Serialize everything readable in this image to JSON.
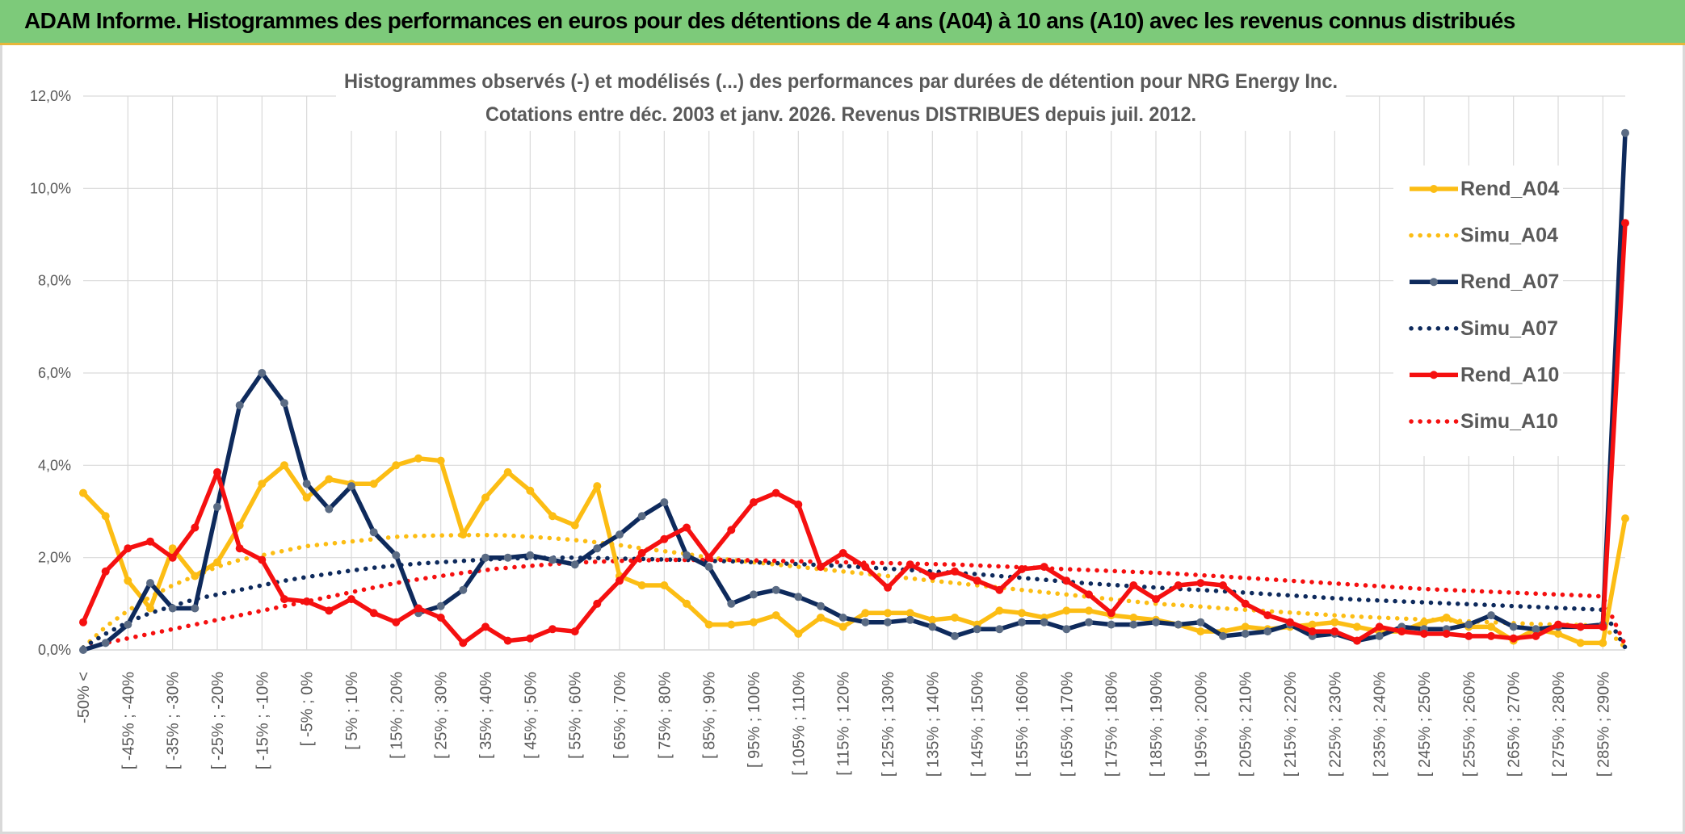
{
  "banner": {
    "title": "ADAM Informe. Histogrammes des performances en euros pour des détentions de 4 ans (A04) à 10 ans (A10) avec les revenus connus distribués"
  },
  "colors": {
    "banner_bg": "#7dca7a",
    "banner_accent": "#e7b63a",
    "a04": "#fcbd14",
    "a07": "#0e2a5c",
    "a07_marker": "#5a6b84",
    "a10": "#f51010",
    "grid": "#d9d9d9",
    "axis_text": "#595959"
  },
  "chart_data": {
    "type": "line",
    "title": "Histogrammes observés (-) et modélisés (...) des performances par durées de détention pour NRG Energy Inc.",
    "subtitle": "Cotations entre déc. 2003 et janv. 2026. Revenus DISTRIBUES depuis juil. 2012.",
    "xlabel": "",
    "ylabel": "",
    "ylim": [
      0,
      12
    ],
    "y_unit": "%",
    "y_ticks": [
      "0,0%",
      "2,0%",
      "4,0%",
      "6,0%",
      "8,0%",
      "10,0%",
      "12,0%"
    ],
    "grid": true,
    "legend_position": "right",
    "x_labels": [
      "-50% <",
      "[ -45% ; -40%",
      "[ -35% ; -30%",
      "[ -25% ; -20%",
      "[ -15% ; -10%",
      "[ -5% ; 0%",
      "[ 5% ; 10%",
      "[ 15% ; 20%",
      "[ 25% ; 30%",
      "[ 35% ; 40%",
      "[ 45% ; 50%",
      "[ 55% ; 60%",
      "[ 65% ; 70%",
      "[ 75% ; 80%",
      "[ 85% ; 90%",
      "[ 95% ; 100%",
      "[ 105% ; 110%",
      "[ 115% ; 120%",
      "[ 125% ; 130%",
      "[ 135% ; 140%",
      "[ 145% ; 150%",
      "[ 155% ; 160%",
      "[ 165% ; 170%",
      "[ 175% ; 180%",
      "[ 185% ; 190%",
      "[ 195% ; 200%",
      "[ 205% ; 210%",
      "[ 215% ; 220%",
      "[ 225% ; 230%",
      "[ 235% ; 240%",
      "[ 245% ; 250%",
      "[ 255% ; 260%",
      "[ 265% ; 270%",
      "[ 275% ; 280%",
      "[ 285% ; 290%"
    ],
    "n_points": 70,
    "series": [
      {
        "name": "Rend_A04",
        "style": "solid",
        "color": "#fcbd14",
        "values": [
          3.4,
          2.9,
          1.5,
          0.9,
          2.2,
          1.6,
          1.9,
          2.7,
          3.6,
          4.0,
          3.3,
          3.7,
          3.6,
          3.6,
          4.0,
          4.15,
          4.1,
          2.5,
          3.3,
          3.85,
          3.45,
          2.9,
          2.7,
          3.55,
          1.6,
          1.4,
          1.4,
          1.0,
          0.55,
          0.55,
          0.6,
          0.75,
          0.35,
          0.7,
          0.5,
          0.8,
          0.8,
          0.8,
          0.65,
          0.7,
          0.55,
          0.85,
          0.8,
          0.7,
          0.85,
          0.85,
          0.75,
          0.7,
          0.65,
          0.55,
          0.4,
          0.4,
          0.5,
          0.45,
          0.5,
          0.55,
          0.6,
          0.5,
          0.4,
          0.4,
          0.6,
          0.7,
          0.5,
          0.5,
          0.2,
          0.45,
          0.35,
          0.15,
          0.15,
          2.85
        ]
      },
      {
        "name": "Simu_A04",
        "style": "dotted",
        "color": "#fcbd14",
        "values": [
          0.05,
          0.5,
          0.85,
          1.15,
          1.4,
          1.6,
          1.8,
          1.95,
          2.05,
          2.15,
          2.25,
          2.3,
          2.35,
          2.4,
          2.45,
          2.47,
          2.48,
          2.49,
          2.49,
          2.48,
          2.45,
          2.42,
          2.38,
          2.33,
          2.27,
          2.2,
          2.14,
          2.08,
          2.0,
          1.95,
          1.9,
          1.85,
          1.8,
          1.75,
          1.7,
          1.65,
          1.6,
          1.55,
          1.5,
          1.45,
          1.4,
          1.35,
          1.3,
          1.25,
          1.2,
          1.15,
          1.1,
          1.05,
          1.0,
          0.97,
          0.94,
          0.9,
          0.87,
          0.84,
          0.81,
          0.78,
          0.75,
          0.72,
          0.7,
          0.68,
          0.66,
          0.64,
          0.62,
          0.6,
          0.58,
          0.56,
          0.55,
          0.54,
          0.52,
          0.05
        ]
      },
      {
        "name": "Rend_A07",
        "style": "solid",
        "color": "#0e2a5c",
        "values": [
          0.0,
          0.15,
          0.55,
          1.45,
          0.9,
          0.9,
          3.1,
          5.3,
          6.0,
          5.35,
          3.6,
          3.05,
          3.55,
          2.55,
          2.05,
          0.8,
          0.95,
          1.3,
          2.0,
          2.0,
          2.05,
          1.95,
          1.85,
          2.2,
          2.5,
          2.9,
          3.2,
          2.05,
          1.8,
          1.0,
          1.2,
          1.3,
          1.15,
          0.95,
          0.7,
          0.6,
          0.6,
          0.65,
          0.5,
          0.3,
          0.45,
          0.45,
          0.6,
          0.6,
          0.45,
          0.6,
          0.55,
          0.55,
          0.6,
          0.55,
          0.6,
          0.3,
          0.35,
          0.4,
          0.55,
          0.3,
          0.35,
          0.2,
          0.3,
          0.5,
          0.45,
          0.45,
          0.55,
          0.75,
          0.5,
          0.45,
          0.5,
          0.5,
          0.55,
          11.2
        ]
      },
      {
        "name": "Simu_A07",
        "style": "dotted",
        "color": "#0e2a5c",
        "values": [
          0.05,
          0.35,
          0.6,
          0.8,
          0.95,
          1.1,
          1.2,
          1.3,
          1.4,
          1.5,
          1.58,
          1.65,
          1.72,
          1.78,
          1.83,
          1.87,
          1.9,
          1.93,
          1.96,
          1.98,
          1.99,
          2.0,
          2.0,
          1.99,
          1.98,
          1.97,
          1.96,
          1.95,
          1.93,
          1.92,
          1.9,
          1.88,
          1.86,
          1.84,
          1.82,
          1.79,
          1.76,
          1.73,
          1.7,
          1.67,
          1.64,
          1.6,
          1.56,
          1.52,
          1.48,
          1.44,
          1.41,
          1.38,
          1.35,
          1.32,
          1.3,
          1.27,
          1.24,
          1.21,
          1.18,
          1.15,
          1.12,
          1.09,
          1.07,
          1.05,
          1.03,
          1.01,
          0.99,
          0.97,
          0.95,
          0.93,
          0.91,
          0.89,
          0.87,
          0.05
        ]
      },
      {
        "name": "Rend_A10",
        "style": "solid",
        "color": "#f51010",
        "values": [
          0.6,
          1.7,
          2.2,
          2.35,
          2.0,
          2.65,
          3.85,
          2.2,
          1.95,
          1.1,
          1.05,
          0.85,
          1.1,
          0.8,
          0.6,
          0.9,
          0.7,
          0.15,
          0.5,
          0.2,
          0.25,
          0.45,
          0.4,
          1.0,
          1.5,
          2.1,
          2.4,
          2.65,
          2.0,
          2.6,
          3.2,
          3.4,
          3.15,
          1.8,
          2.1,
          1.8,
          1.35,
          1.85,
          1.6,
          1.7,
          1.5,
          1.3,
          1.75,
          1.8,
          1.5,
          1.2,
          0.8,
          1.4,
          1.1,
          1.4,
          1.45,
          1.4,
          1.0,
          0.75,
          0.6,
          0.4,
          0.4,
          0.2,
          0.5,
          0.4,
          0.35,
          0.35,
          0.3,
          0.3,
          0.25,
          0.3,
          0.55,
          0.5,
          0.5,
          9.25
        ]
      },
      {
        "name": "Simu_A10",
        "style": "dotted",
        "color": "#f51010",
        "values": [
          0.02,
          0.15,
          0.25,
          0.35,
          0.45,
          0.55,
          0.65,
          0.75,
          0.85,
          0.95,
          1.05,
          1.15,
          1.25,
          1.35,
          1.45,
          1.53,
          1.6,
          1.67,
          1.73,
          1.78,
          1.82,
          1.86,
          1.89,
          1.91,
          1.93,
          1.94,
          1.95,
          1.95,
          1.95,
          1.95,
          1.94,
          1.93,
          1.92,
          1.91,
          1.9,
          1.89,
          1.88,
          1.87,
          1.86,
          1.85,
          1.83,
          1.81,
          1.79,
          1.77,
          1.75,
          1.73,
          1.71,
          1.69,
          1.67,
          1.65,
          1.62,
          1.59,
          1.56,
          1.53,
          1.5,
          1.47,
          1.44,
          1.41,
          1.38,
          1.35,
          1.32,
          1.3,
          1.28,
          1.26,
          1.24,
          1.22,
          1.2,
          1.18,
          1.16,
          0.1
        ]
      }
    ]
  }
}
